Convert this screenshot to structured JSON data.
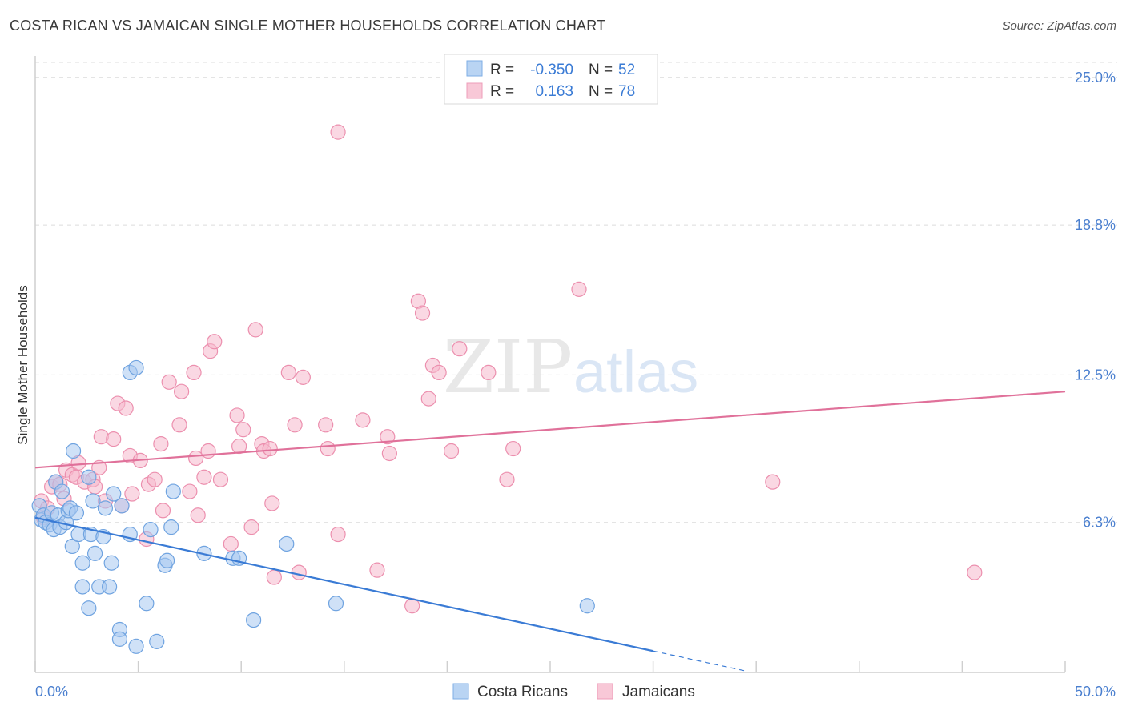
{
  "title": "COSTA RICAN VS JAMAICAN SINGLE MOTHER HOUSEHOLDS CORRELATION CHART",
  "source": "Source: ZipAtlas.com",
  "watermark": {
    "zip": "ZIP",
    "atlas": "atlas"
  },
  "legend": {
    "r_label": "R =",
    "n_label": "N =",
    "rows": [
      {
        "r": "-0.350",
        "n": "52"
      },
      {
        "r": "0.163",
        "n": "78"
      }
    ]
  },
  "bottom_legend": [
    "Costa Ricans",
    "Jamaicans"
  ],
  "colors": {
    "blue_fill": "#a8c8f0",
    "blue_stroke": "#6fa3e0",
    "blue_line": "#3a7bd5",
    "pink_fill": "#f6b8cc",
    "pink_stroke": "#ec8fae",
    "pink_line": "#e0719a",
    "axis_text": "#4a7fcf",
    "grid": "#dcdcdc"
  },
  "chart_data": {
    "type": "scatter",
    "title": "COSTA RICAN VS JAMAICAN SINGLE MOTHER HOUSEHOLDS CORRELATION CHART",
    "xlabel": "",
    "ylabel": "Single Mother Households",
    "xlim": [
      0,
      50
    ],
    "ylim": [
      0,
      25.9
    ],
    "x_tick_labels": [
      "0.0%",
      "50.0%"
    ],
    "y_ticks": [
      6.3,
      12.5,
      18.8,
      25.0
    ],
    "y_tick_labels": [
      "6.3%",
      "12.5%",
      "18.8%",
      "25.0%"
    ],
    "series": [
      {
        "name": "Costa Ricans",
        "r": -0.35,
        "n": 52,
        "trend": {
          "x0": 0,
          "y0": 6.5,
          "x1": 30,
          "y1": 0.9,
          "dash_to_x": 34.5
        },
        "points": [
          [
            0.2,
            7.0
          ],
          [
            0.3,
            6.4
          ],
          [
            0.4,
            6.6
          ],
          [
            0.5,
            6.3
          ],
          [
            0.7,
            6.2
          ],
          [
            0.8,
            6.7
          ],
          [
            0.9,
            6.0
          ],
          [
            1.0,
            8.0
          ],
          [
            1.1,
            6.6
          ],
          [
            1.2,
            6.1
          ],
          [
            1.3,
            7.6
          ],
          [
            1.5,
            6.3
          ],
          [
            1.6,
            6.8
          ],
          [
            1.7,
            6.9
          ],
          [
            1.8,
            5.3
          ],
          [
            1.85,
            9.3
          ],
          [
            2.0,
            6.7
          ],
          [
            2.1,
            5.8
          ],
          [
            2.3,
            4.6
          ],
          [
            2.3,
            3.6
          ],
          [
            2.6,
            2.7
          ],
          [
            2.6,
            8.2
          ],
          [
            2.7,
            5.8
          ],
          [
            2.8,
            7.2
          ],
          [
            2.9,
            5.0
          ],
          [
            3.1,
            3.6
          ],
          [
            3.3,
            5.7
          ],
          [
            3.4,
            6.9
          ],
          [
            3.6,
            3.6
          ],
          [
            3.7,
            4.6
          ],
          [
            3.8,
            7.5
          ],
          [
            4.1,
            1.8
          ],
          [
            4.1,
            1.4
          ],
          [
            4.2,
            7.0
          ],
          [
            4.6,
            5.8
          ],
          [
            4.6,
            12.6
          ],
          [
            4.9,
            12.8
          ],
          [
            4.9,
            1.1
          ],
          [
            5.4,
            2.9
          ],
          [
            5.6,
            6.0
          ],
          [
            5.9,
            1.3
          ],
          [
            6.3,
            4.5
          ],
          [
            6.4,
            4.7
          ],
          [
            6.6,
            6.1
          ],
          [
            6.7,
            7.6
          ],
          [
            8.2,
            5.0
          ],
          [
            9.6,
            4.8
          ],
          [
            9.9,
            4.8
          ],
          [
            10.6,
            2.2
          ],
          [
            12.2,
            5.4
          ],
          [
            14.6,
            2.9
          ],
          [
            26.8,
            2.8
          ]
        ]
      },
      {
        "name": "Jamaicans",
        "r": 0.163,
        "n": 78,
        "trend": {
          "x0": 0,
          "y0": 8.6,
          "x1": 50,
          "y1": 11.8
        },
        "points": [
          [
            0.3,
            7.2
          ],
          [
            0.4,
            6.5
          ],
          [
            0.6,
            6.9
          ],
          [
            0.8,
            7.8
          ],
          [
            1.0,
            8.0
          ],
          [
            1.2,
            7.9
          ],
          [
            1.4,
            7.3
          ],
          [
            1.5,
            8.5
          ],
          [
            1.8,
            8.3
          ],
          [
            2.0,
            8.2
          ],
          [
            2.1,
            8.8
          ],
          [
            2.4,
            8.0
          ],
          [
            2.8,
            8.1
          ],
          [
            2.9,
            7.8
          ],
          [
            3.1,
            8.6
          ],
          [
            3.2,
            9.9
          ],
          [
            3.4,
            7.2
          ],
          [
            3.8,
            9.8
          ],
          [
            4.0,
            11.3
          ],
          [
            4.2,
            7.0
          ],
          [
            4.4,
            11.1
          ],
          [
            4.6,
            9.1
          ],
          [
            4.7,
            7.5
          ],
          [
            5.1,
            8.9
          ],
          [
            5.4,
            5.6
          ],
          [
            5.5,
            7.9
          ],
          [
            5.8,
            8.1
          ],
          [
            6.1,
            9.6
          ],
          [
            6.2,
            6.8
          ],
          [
            6.5,
            12.2
          ],
          [
            7.0,
            10.4
          ],
          [
            7.1,
            11.8
          ],
          [
            7.5,
            7.6
          ],
          [
            7.7,
            12.6
          ],
          [
            7.8,
            9.0
          ],
          [
            7.9,
            6.6
          ],
          [
            8.2,
            8.2
          ],
          [
            8.4,
            9.3
          ],
          [
            8.5,
            13.5
          ],
          [
            8.7,
            13.9
          ],
          [
            9.0,
            8.1
          ],
          [
            9.5,
            5.4
          ],
          [
            9.8,
            10.8
          ],
          [
            9.9,
            9.5
          ],
          [
            10.1,
            10.2
          ],
          [
            10.5,
            6.1
          ],
          [
            10.7,
            14.4
          ],
          [
            11.0,
            9.6
          ],
          [
            11.1,
            9.3
          ],
          [
            11.4,
            9.4
          ],
          [
            11.5,
            7.1
          ],
          [
            11.6,
            4.0
          ],
          [
            12.3,
            12.6
          ],
          [
            12.6,
            10.4
          ],
          [
            12.8,
            4.2
          ],
          [
            13.0,
            12.4
          ],
          [
            14.1,
            10.4
          ],
          [
            14.2,
            9.4
          ],
          [
            14.7,
            5.8
          ],
          [
            15.9,
            10.6
          ],
          [
            16.6,
            4.3
          ],
          [
            17.1,
            9.9
          ],
          [
            17.2,
            9.2
          ],
          [
            18.3,
            2.8
          ],
          [
            18.6,
            15.6
          ],
          [
            18.8,
            15.1
          ],
          [
            19.1,
            11.5
          ],
          [
            19.3,
            12.9
          ],
          [
            19.6,
            12.6
          ],
          [
            20.2,
            9.3
          ],
          [
            20.6,
            13.6
          ],
          [
            22.0,
            12.6
          ],
          [
            22.9,
            8.1
          ],
          [
            23.2,
            9.4
          ],
          [
            26.4,
            16.1
          ],
          [
            35.8,
            8.0
          ],
          [
            45.6,
            4.2
          ],
          [
            14.7,
            22.7
          ]
        ]
      }
    ]
  }
}
